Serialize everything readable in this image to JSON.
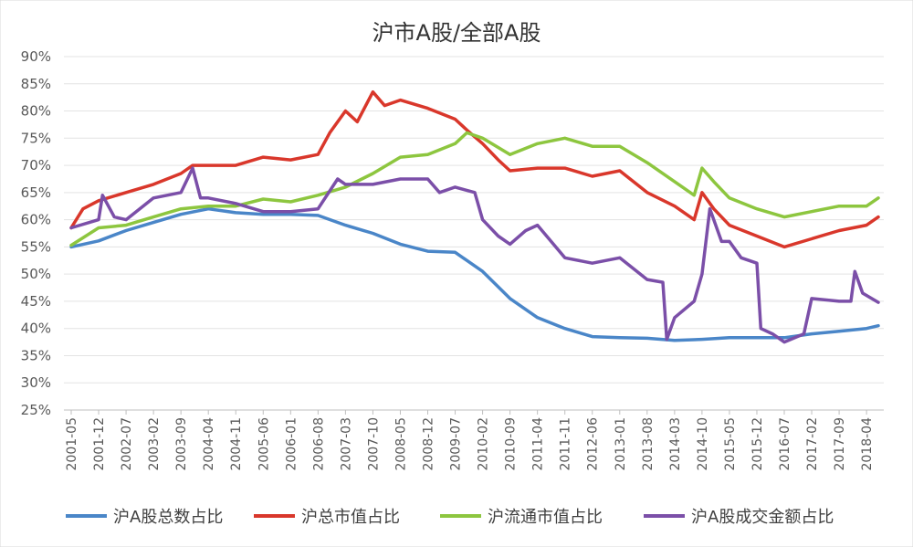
{
  "chart_data": {
    "type": "line",
    "title": "沪市A股/全部A股",
    "xlabel": "",
    "ylabel": "",
    "ylim": [
      0.25,
      0.9
    ],
    "yticks": [
      "25%",
      "30%",
      "35%",
      "40%",
      "45%",
      "50%",
      "55%",
      "60%",
      "65%",
      "70%",
      "75%",
      "80%",
      "85%",
      "90%"
    ],
    "x_tick_labels": [
      "2001-05",
      "2001-12",
      "2002-07",
      "2003-02",
      "2003-09",
      "2004-04",
      "2004-11",
      "2005-06",
      "2006-01",
      "2006-08",
      "2007-03",
      "2007-10",
      "2008-05",
      "2008-12",
      "2009-07",
      "2010-02",
      "2010-09",
      "2011-04",
      "2011-11",
      "2012-06",
      "2013-01",
      "2013-08",
      "2014-03",
      "2014-10",
      "2015-05",
      "2015-12",
      "2016-07",
      "2017-02",
      "2017-09",
      "2018-04"
    ],
    "x_range": [
      "2001-05",
      "2018-07"
    ],
    "grid": "horizontal",
    "legend_position": "bottom",
    "series": [
      {
        "name": "沪A股总数占比",
        "color": "#4A86C8",
        "points": [
          [
            "2001-05",
            0.55
          ],
          [
            "2001-12",
            0.561
          ],
          [
            "2002-07",
            0.58
          ],
          [
            "2003-02",
            0.595
          ],
          [
            "2003-09",
            0.61
          ],
          [
            "2004-04",
            0.62
          ],
          [
            "2004-11",
            0.613
          ],
          [
            "2005-06",
            0.61
          ],
          [
            "2006-01",
            0.61
          ],
          [
            "2006-08",
            0.608
          ],
          [
            "2007-03",
            0.59
          ],
          [
            "2007-10",
            0.575
          ],
          [
            "2008-05",
            0.555
          ],
          [
            "2008-12",
            0.542
          ],
          [
            "2009-07",
            0.54
          ],
          [
            "2010-02",
            0.505
          ],
          [
            "2010-09",
            0.455
          ],
          [
            "2011-04",
            0.42
          ],
          [
            "2011-11",
            0.4
          ],
          [
            "2012-06",
            0.385
          ],
          [
            "2013-01",
            0.383
          ],
          [
            "2013-08",
            0.382
          ],
          [
            "2014-03",
            0.378
          ],
          [
            "2014-10",
            0.38
          ],
          [
            "2015-05",
            0.383
          ],
          [
            "2015-12",
            0.383
          ],
          [
            "2016-07",
            0.383
          ],
          [
            "2017-02",
            0.39
          ],
          [
            "2017-09",
            0.395
          ],
          [
            "2018-04",
            0.4
          ],
          [
            "2018-07",
            0.405
          ]
        ]
      },
      {
        "name": "沪总市值占比",
        "color": "#D9372B",
        "points": [
          [
            "2001-05",
            0.585
          ],
          [
            "2001-08",
            0.62
          ],
          [
            "2001-12",
            0.635
          ],
          [
            "2002-07",
            0.65
          ],
          [
            "2003-02",
            0.665
          ],
          [
            "2003-09",
            0.685
          ],
          [
            "2003-12",
            0.7
          ],
          [
            "2004-04",
            0.7
          ],
          [
            "2004-11",
            0.7
          ],
          [
            "2005-06",
            0.715
          ],
          [
            "2006-01",
            0.71
          ],
          [
            "2006-08",
            0.72
          ],
          [
            "2006-11",
            0.76
          ],
          [
            "2007-03",
            0.8
          ],
          [
            "2007-06",
            0.78
          ],
          [
            "2007-10",
            0.835
          ],
          [
            "2008-01",
            0.81
          ],
          [
            "2008-05",
            0.82
          ],
          [
            "2008-12",
            0.805
          ],
          [
            "2009-07",
            0.785
          ],
          [
            "2009-10",
            0.765
          ],
          [
            "2010-02",
            0.74
          ],
          [
            "2010-06",
            0.71
          ],
          [
            "2010-09",
            0.69
          ],
          [
            "2011-04",
            0.695
          ],
          [
            "2011-11",
            0.695
          ],
          [
            "2012-06",
            0.68
          ],
          [
            "2013-01",
            0.69
          ],
          [
            "2013-08",
            0.65
          ],
          [
            "2014-03",
            0.625
          ],
          [
            "2014-08",
            0.6
          ],
          [
            "2014-10",
            0.65
          ],
          [
            "2015-01",
            0.62
          ],
          [
            "2015-05",
            0.59
          ],
          [
            "2015-12",
            0.57
          ],
          [
            "2016-07",
            0.55
          ],
          [
            "2017-02",
            0.565
          ],
          [
            "2017-09",
            0.58
          ],
          [
            "2018-04",
            0.59
          ],
          [
            "2018-07",
            0.605
          ]
        ]
      },
      {
        "name": "沪流通市值占比",
        "color": "#8DC63F",
        "points": [
          [
            "2001-05",
            0.553
          ],
          [
            "2001-12",
            0.585
          ],
          [
            "2002-07",
            0.59
          ],
          [
            "2003-02",
            0.605
          ],
          [
            "2003-09",
            0.62
          ],
          [
            "2004-04",
            0.625
          ],
          [
            "2004-11",
            0.625
          ],
          [
            "2005-06",
            0.638
          ],
          [
            "2006-01",
            0.633
          ],
          [
            "2006-08",
            0.645
          ],
          [
            "2007-03",
            0.66
          ],
          [
            "2007-10",
            0.685
          ],
          [
            "2008-05",
            0.715
          ],
          [
            "2008-12",
            0.72
          ],
          [
            "2009-07",
            0.74
          ],
          [
            "2009-10",
            0.76
          ],
          [
            "2010-02",
            0.75
          ],
          [
            "2010-09",
            0.72
          ],
          [
            "2011-04",
            0.74
          ],
          [
            "2011-11",
            0.75
          ],
          [
            "2012-06",
            0.735
          ],
          [
            "2013-01",
            0.735
          ],
          [
            "2013-08",
            0.705
          ],
          [
            "2014-03",
            0.67
          ],
          [
            "2014-08",
            0.645
          ],
          [
            "2014-10",
            0.695
          ],
          [
            "2015-01",
            0.67
          ],
          [
            "2015-05",
            0.64
          ],
          [
            "2015-12",
            0.62
          ],
          [
            "2016-07",
            0.605
          ],
          [
            "2017-02",
            0.615
          ],
          [
            "2017-09",
            0.625
          ],
          [
            "2018-04",
            0.625
          ],
          [
            "2018-07",
            0.64
          ]
        ]
      },
      {
        "name": "沪A股成交金额占比",
        "color": "#7B4FA8",
        "points": [
          [
            "2001-05",
            0.585
          ],
          [
            "2001-12",
            0.6
          ],
          [
            "2002-01",
            0.645
          ],
          [
            "2002-04",
            0.605
          ],
          [
            "2002-07",
            0.6
          ],
          [
            "2003-02",
            0.64
          ],
          [
            "2003-09",
            0.65
          ],
          [
            "2003-12",
            0.695
          ],
          [
            "2004-02",
            0.64
          ],
          [
            "2004-04",
            0.64
          ],
          [
            "2004-11",
            0.63
          ],
          [
            "2005-06",
            0.615
          ],
          [
            "2006-01",
            0.615
          ],
          [
            "2006-08",
            0.62
          ],
          [
            "2007-01",
            0.675
          ],
          [
            "2007-03",
            0.665
          ],
          [
            "2007-10",
            0.665
          ],
          [
            "2008-05",
            0.675
          ],
          [
            "2008-12",
            0.675
          ],
          [
            "2009-03",
            0.65
          ],
          [
            "2009-07",
            0.66
          ],
          [
            "2009-12",
            0.65
          ],
          [
            "2010-02",
            0.6
          ],
          [
            "2010-06",
            0.57
          ],
          [
            "2010-09",
            0.555
          ],
          [
            "2011-01",
            0.58
          ],
          [
            "2011-04",
            0.59
          ],
          [
            "2011-11",
            0.53
          ],
          [
            "2012-06",
            0.52
          ],
          [
            "2013-01",
            0.53
          ],
          [
            "2013-08",
            0.49
          ],
          [
            "2013-12",
            0.485
          ],
          [
            "2014-01",
            0.38
          ],
          [
            "2014-03",
            0.42
          ],
          [
            "2014-08",
            0.45
          ],
          [
            "2014-10",
            0.5
          ],
          [
            "2014-12",
            0.62
          ],
          [
            "2015-03",
            0.56
          ],
          [
            "2015-05",
            0.56
          ],
          [
            "2015-08",
            0.53
          ],
          [
            "2015-12",
            0.52
          ],
          [
            "2016-01",
            0.4
          ],
          [
            "2016-04",
            0.39
          ],
          [
            "2016-07",
            0.375
          ],
          [
            "2016-12",
            0.39
          ],
          [
            "2017-02",
            0.455
          ],
          [
            "2017-09",
            0.45
          ],
          [
            "2017-12",
            0.45
          ],
          [
            "2018-01",
            0.505
          ],
          [
            "2018-03",
            0.465
          ],
          [
            "2018-07",
            0.448
          ]
        ]
      }
    ]
  }
}
